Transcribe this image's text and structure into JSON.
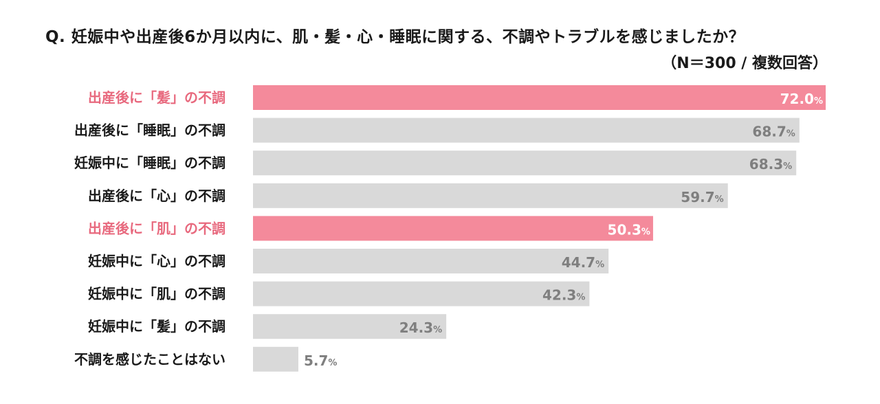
{
  "title": "Q. 妊娠中や出産後6か月以内に、肌・髪・心・睡眠に関する、不調やトラブルを感じましたか？",
  "subtitle": "（N＝300 / 複数回答）",
  "colors": {
    "highlight": "#f48a9b",
    "highlight_label": "#e8697e",
    "default_bar": "#d9d9d9",
    "default_label": "#1a1a1a",
    "default_value": "#7f7f7f",
    "inside_value": "#ffffff"
  },
  "chart_data": {
    "type": "bar",
    "orientation": "horizontal",
    "unit": "%",
    "xlim": [
      0,
      72.0
    ],
    "categories": [
      "出産後に「髪」の不調",
      "出産後に「睡眠」の不調",
      "妊娠中に「睡眠」の不調",
      "出産後に「心」の不調",
      "出産後に「肌」の不調",
      "妊娠中に「心」の不調",
      "妊娠中に「肌」の不調",
      "妊娠中に「髪」の不調",
      "不調を感じたことはない"
    ],
    "values": [
      72.0,
      68.7,
      68.3,
      59.7,
      50.3,
      44.7,
      42.3,
      24.3,
      5.7
    ],
    "highlighted": [
      true,
      false,
      false,
      false,
      true,
      false,
      false,
      false,
      false
    ],
    "grid": false,
    "legend": "none"
  }
}
